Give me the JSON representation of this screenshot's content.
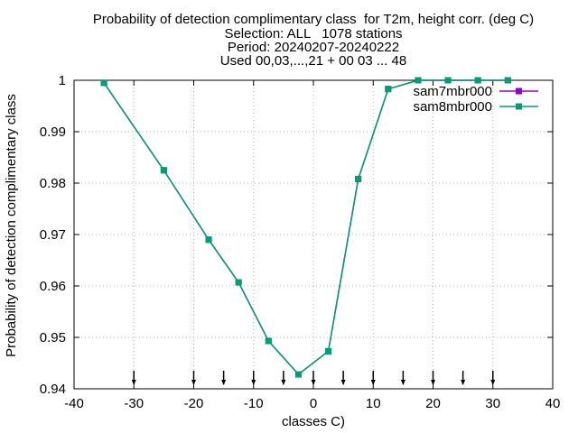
{
  "title_lines": [
    "Probability of detection complimentary class  for T2m, height corr. (deg C)",
    "Selection: ALL   1078 stations",
    "Period: 20240207-20240222",
    "Used 00,03,...,21 + 00 03 ... 48"
  ],
  "chart_data": {
    "type": "line",
    "xlabel": "classes C)",
    "ylabel": "Probability of detection complimentary class",
    "xlim": [
      -40,
      40
    ],
    "ylim": [
      0.94,
      1.0
    ],
    "x_ticks": [
      -40,
      -30,
      -20,
      -10,
      0,
      10,
      20,
      30,
      40
    ],
    "y_ticks": [
      0.94,
      0.95,
      0.96,
      0.97,
      0.98,
      0.99,
      1.0
    ],
    "x_tick_labels": [
      "-40",
      "-30",
      "-20",
      "-10",
      "0",
      "10",
      "20",
      "30",
      "40"
    ],
    "y_tick_labels": [
      "0.94",
      "0.95",
      "0.96",
      "0.97",
      "0.98",
      "0.99",
      "1"
    ],
    "grid": true,
    "legend_position": "top-right",
    "class_markers_x": [
      -30,
      -20,
      -15,
      -10,
      -5,
      0,
      5,
      10,
      15,
      20,
      25,
      30
    ],
    "series": [
      {
        "name": "sam7mbr000",
        "color": "#9400d3",
        "marker": "square",
        "x": [
          -35,
          -25,
          -17.5,
          -12.5,
          -7.5,
          -2.5,
          2.5,
          7.5,
          12.5,
          17.5,
          22.5,
          27.5,
          32.5
        ],
        "values": [
          0.9995,
          0.9825,
          0.969,
          0.9607,
          0.9493,
          0.9428,
          0.9473,
          0.9808,
          0.9983,
          1.0,
          1.0,
          1.0,
          1.0
        ]
      },
      {
        "name": "sam8mbr000",
        "color": "#009e73",
        "marker": "square",
        "x": [
          -35,
          -25,
          -17.5,
          -12.5,
          -7.5,
          -2.5,
          2.5,
          7.5,
          12.5,
          17.5,
          22.5,
          27.5,
          32.5
        ],
        "values": [
          0.9995,
          0.9825,
          0.969,
          0.9607,
          0.9493,
          0.9428,
          0.9473,
          0.9808,
          0.9983,
          1.0,
          1.0,
          1.0,
          1.0
        ]
      }
    ]
  }
}
